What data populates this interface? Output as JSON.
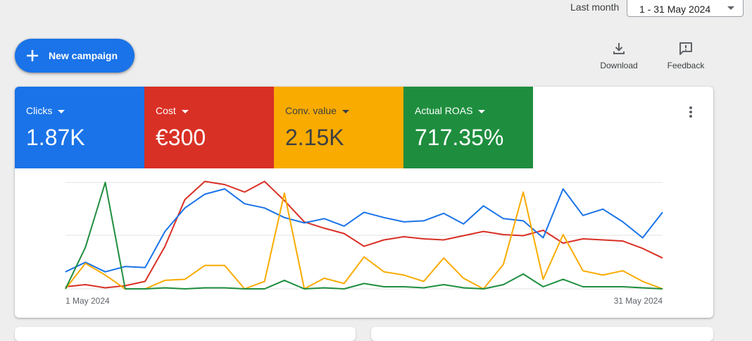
{
  "header": {
    "date_label": "Last month",
    "date_value": "1 - 31 May 2024"
  },
  "actions": {
    "new_campaign": "New campaign",
    "download": "Download",
    "feedback": "Feedback"
  },
  "scorecards": [
    {
      "label": "Clicks",
      "value": "1.87K",
      "color": "#1a73e8"
    },
    {
      "label": "Cost",
      "value": "€300",
      "color": "#d93025"
    },
    {
      "label": "Conv. value",
      "value": "2.15K",
      "color": "#f9ab00"
    },
    {
      "label": "Actual ROAS",
      "value": "717.35%",
      "color": "#1e8e3e"
    }
  ],
  "chart_data": {
    "type": "line",
    "x_start_label": "1 May 2024",
    "x_end_label": "31 May 2024",
    "y_normalized_range": [
      0,
      100
    ],
    "series": [
      {
        "name": "Clicks",
        "color": "#1a73e8",
        "values": [
          16,
          25,
          16,
          21,
          20,
          54,
          76,
          89,
          94,
          80,
          76,
          67,
          62,
          66,
          59,
          72,
          67,
          63,
          64,
          71,
          61,
          78,
          66,
          64,
          48,
          94,
          69,
          75,
          63,
          48,
          72
        ]
      },
      {
        "name": "Cost",
        "color": "#d93025",
        "values": [
          2,
          4,
          1,
          3,
          7,
          40,
          84,
          101,
          98,
          91,
          101,
          83,
          63,
          57,
          52,
          40,
          46,
          49,
          47,
          46,
          50,
          54,
          51,
          50,
          55,
          43,
          47,
          46,
          45,
          38,
          29
        ]
      },
      {
        "name": "Conv. value",
        "color": "#f9ab00",
        "values": [
          0,
          24,
          13,
          0,
          0,
          8,
          9,
          22,
          22,
          0,
          7,
          90,
          0,
          10,
          5,
          30,
          16,
          13,
          7,
          29,
          10,
          0,
          23,
          91,
          9,
          51,
          17,
          13,
          17,
          7,
          0
        ]
      },
      {
        "name": "Actual ROAS",
        "color": "#1e8e3e",
        "values": [
          0,
          39,
          100,
          0,
          0,
          1,
          0,
          1,
          1,
          0,
          0,
          8,
          0,
          1,
          0,
          5,
          2,
          2,
          1,
          4,
          1,
          0,
          4,
          14,
          2,
          9,
          2,
          2,
          2,
          1,
          0
        ]
      }
    ]
  }
}
